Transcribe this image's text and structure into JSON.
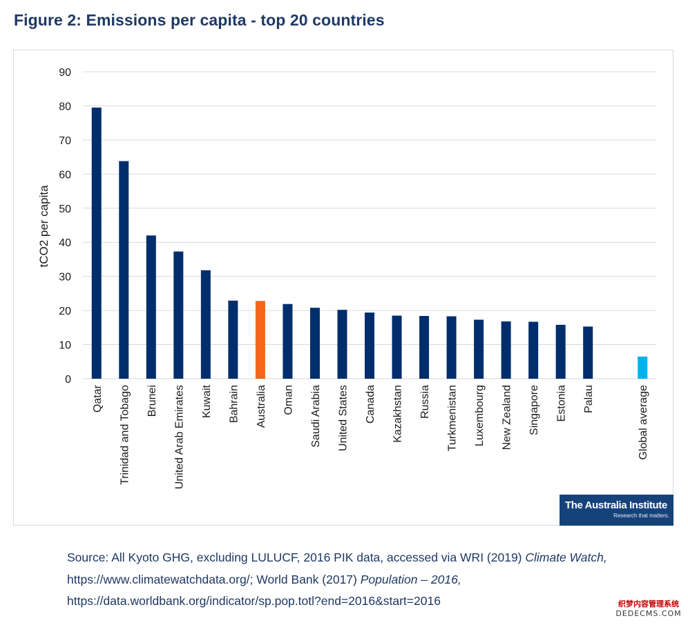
{
  "title": "Figure 2: Emissions per capita - top 20 countries",
  "chart_data": {
    "type": "bar",
    "ylabel": "tCO2 per capita",
    "xlabel": "",
    "ylim": [
      0,
      90
    ],
    "yticks": [
      0,
      10,
      20,
      30,
      40,
      50,
      60,
      70,
      80,
      90
    ],
    "grid": "horizontal",
    "legend": "none",
    "categories": [
      "Qatar",
      "Trinidad and Tobago",
      "Brunei",
      "United Arab Emirates",
      "Kuwait",
      "Bahrain",
      "Australia",
      "Oman",
      "Saudi Arabia",
      "United States",
      "Canada",
      "Kazakhstan",
      "Russia",
      "Turkmenistan",
      "Luxembourg",
      "New Zealand",
      "Singapore",
      "Estonia",
      "Palau",
      "",
      "Global average"
    ],
    "values": [
      79.5,
      63.8,
      42.0,
      37.3,
      31.8,
      22.9,
      22.8,
      21.9,
      20.8,
      20.2,
      19.4,
      18.5,
      18.4,
      18.3,
      17.3,
      16.8,
      16.7,
      15.8,
      15.3,
      null,
      6.5
    ],
    "colors": {
      "default": "#002d6b",
      "highlight": "#f4661b",
      "global": "#00b0f0"
    },
    "highlight_category": "Australia",
    "global_category": "Global average"
  },
  "logo": {
    "name": "The Australia Institute",
    "tagline": "Research that matters."
  },
  "source": {
    "prefix": "Source: All Kyoto GHG, excluding LULUCF, 2016 PIK data, accessed via WRI (2019) ",
    "italic1": "Climate Watch,",
    "middle": " https://www.climatewatchdata.org/; World Bank (2017) ",
    "italic2": "Population – 2016,",
    "url": "https://data.worldbank.org/indicator/sp.pop.totl?end=2016&start=2016"
  },
  "watermark": {
    "line1": "织梦内容管理系统",
    "line2": "DEDECMS.COM"
  }
}
